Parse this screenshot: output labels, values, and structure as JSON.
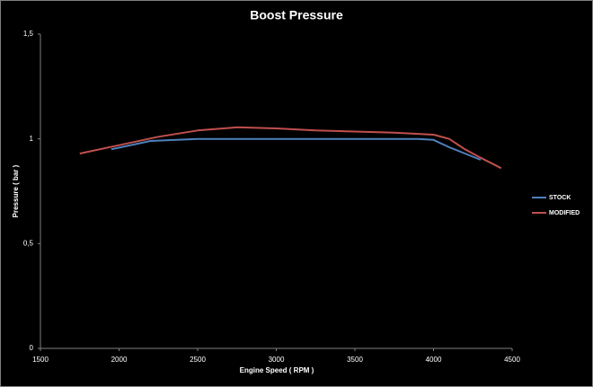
{
  "chart_data": {
    "type": "line",
    "title": "Boost Pressure",
    "x_label": "Engine Speed ( RPM )",
    "y_label": "Pressure ( bar )",
    "xlim": [
      1500,
      4500
    ],
    "xticks": [
      1500,
      2000,
      2500,
      3000,
      3500,
      4000,
      4500
    ],
    "ylim": [
      0,
      1.5
    ],
    "yticks": [
      0,
      {
        "value": 0.5,
        "label": "0,5"
      },
      1,
      {
        "value": 1.5,
        "label": "1,5"
      }
    ],
    "grid": false,
    "legend": "right",
    "series": [
      {
        "name": "STOCK",
        "color": "#4f81bd",
        "x": [
          1950,
          2200,
          2500,
          3000,
          3500,
          3900,
          4000,
          4100,
          4200,
          4300
        ],
        "values": [
          0.95,
          0.99,
          1.0,
          1.0,
          1.0,
          1.0,
          0.995,
          0.96,
          0.93,
          0.9
        ]
      },
      {
        "name": "MODIFIED",
        "color": "#c0504d",
        "x": [
          1750,
          2000,
          2250,
          2500,
          2750,
          3000,
          3250,
          3500,
          3750,
          4000,
          4100,
          4200,
          4300,
          4430
        ],
        "values": [
          0.93,
          0.97,
          1.01,
          1.04,
          1.055,
          1.05,
          1.04,
          1.035,
          1.03,
          1.02,
          1.0,
          0.95,
          0.91,
          0.86
        ]
      }
    ]
  }
}
